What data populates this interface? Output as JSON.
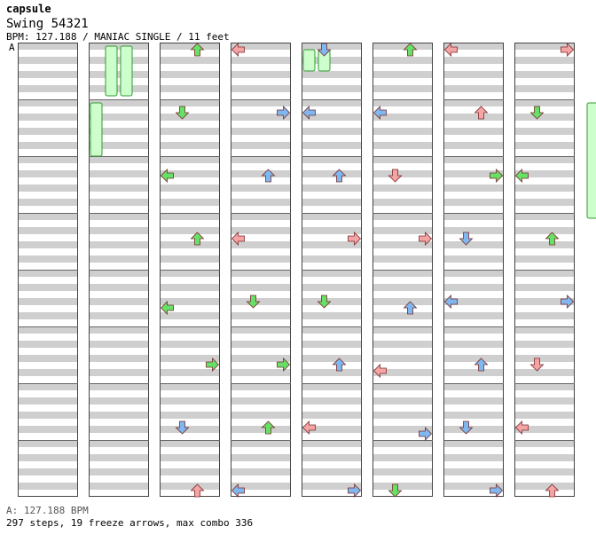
{
  "header": {
    "artist": "capsule",
    "title": "Swing 54321",
    "info": "BPM: 127.188 / MANIAC SINGLE / 11 feet"
  },
  "marker": "A",
  "footer": {
    "bpm": "A: 127.188 BPM",
    "stats": "297 steps, 19 freeze arrows, max combo 336"
  },
  "colors": {
    "lane_stripe": "#cfcfcf",
    "lane_bg": "#ffffff",
    "quarter_note": "#f4a4a4",
    "eighth_note": "#7fb8f0",
    "sixteenth_note": "#66e066",
    "other_note": "#e8a0f0",
    "freeze_body": "#ccffcc",
    "freeze_border": "#339933",
    "arrow_outline": "#cc3333"
  },
  "chart_data": {
    "type": "step-chart",
    "columns": 8,
    "measures_per_column": 8,
    "lanes": [
      "left",
      "down",
      "up",
      "right"
    ],
    "bpm": 127.188,
    "steps": 297,
    "freeze_arrows": 19,
    "max_combo": 336,
    "notes": [
      [
        3,
        2,
        0
      ],
      [
        3,
        1,
        1
      ],
      [
        3,
        0,
        2
      ],
      [
        3,
        2,
        3
      ],
      [
        3,
        0,
        5
      ],
      [
        3,
        3,
        5
      ],
      [
        3,
        1,
        6
      ],
      [
        3,
        2,
        7
      ],
      [
        4,
        0,
        0
      ],
      [
        4,
        3,
        1
      ],
      [
        4,
        2,
        2
      ],
      [
        4,
        0,
        3
      ],
      [
        4,
        1,
        4
      ],
      [
        4,
        3,
        5
      ],
      [
        4,
        2,
        6
      ],
      [
        4,
        0,
        7
      ],
      [
        5,
        1,
        0
      ],
      [
        5,
        0,
        1
      ],
      [
        5,
        2,
        2
      ],
      [
        5,
        3,
        3
      ],
      [
        5,
        1,
        4
      ],
      [
        5,
        2,
        5
      ],
      [
        5,
        0,
        6
      ],
      [
        5,
        3,
        7
      ],
      [
        6,
        2,
        0
      ],
      [
        6,
        0,
        1
      ],
      [
        6,
        1,
        2
      ],
      [
        6,
        3,
        3
      ],
      [
        6,
        2,
        5
      ],
      [
        6,
        0,
        6
      ],
      [
        6,
        3,
        7
      ],
      [
        6,
        1,
        7
      ],
      [
        7,
        0,
        0
      ],
      [
        7,
        2,
        1
      ],
      [
        7,
        3,
        2
      ],
      [
        7,
        1,
        3
      ],
      [
        7,
        0,
        4
      ],
      [
        7,
        2,
        5
      ],
      [
        7,
        1,
        6
      ],
      [
        7,
        3,
        7
      ],
      [
        8,
        3,
        0
      ],
      [
        8,
        1,
        1
      ],
      [
        8,
        0,
        2
      ],
      [
        8,
        2,
        3
      ],
      [
        8,
        3,
        4
      ],
      [
        8,
        1,
        5
      ],
      [
        8,
        0,
        6
      ],
      [
        8,
        2,
        7
      ]
    ]
  }
}
